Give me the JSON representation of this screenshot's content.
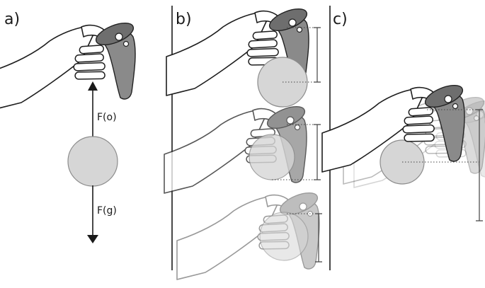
{
  "panels": {
    "a": {
      "label": "a)"
    },
    "b": {
      "label": "b)"
    },
    "c": {
      "label": "c)"
    }
  },
  "forces": {
    "object": "F(o)",
    "gravity": "F(g)"
  },
  "colors": {
    "ball_fill": "#d6d6d6",
    "controller": "#8a8a8a",
    "line": "#1e1e1e"
  },
  "icons": [
    "hand-controller-icon",
    "ball-icon",
    "arrow-up-icon",
    "arrow-down-icon"
  ]
}
